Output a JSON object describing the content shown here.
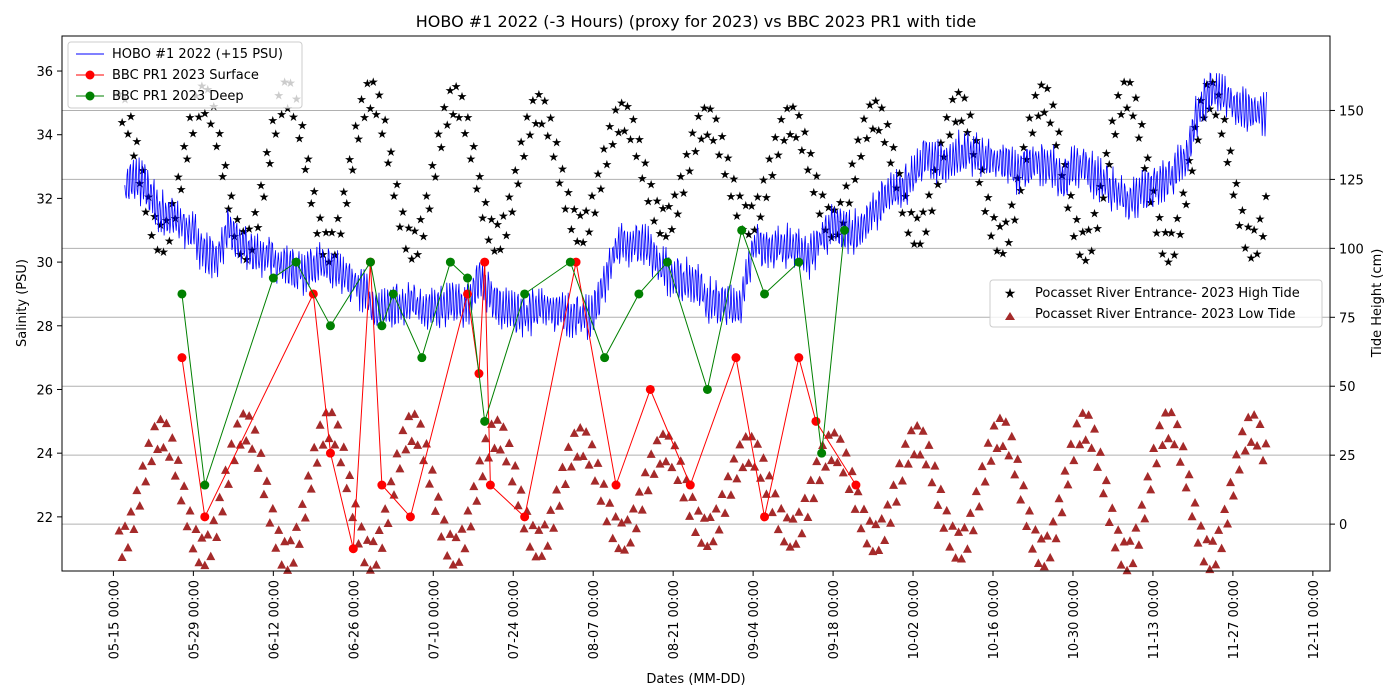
{
  "chart_data": {
    "type": "line",
    "title": "HOBO #1 2022 (-3 Hours) (proxy for 2023) vs BBC 2023 PR1 with tide",
    "xlabel": "Dates (MM-DD)",
    "ylabel": "Salinity (PSU)",
    "y2label": "Tide Height (cm)",
    "x_axis": {
      "kind": "date",
      "range": [
        "2023-05-06",
        "2023-12-14"
      ],
      "tick_dates": [
        "2023-05-15",
        "2023-05-29",
        "2023-06-12",
        "2023-06-26",
        "2023-07-10",
        "2023-07-24",
        "2023-08-07",
        "2023-08-21",
        "2023-09-04",
        "2023-09-18",
        "2023-10-02",
        "2023-10-16",
        "2023-10-30",
        "2023-11-13",
        "2023-11-27",
        "2023-12-11"
      ],
      "tick_labels": [
        "05-15 00:00",
        "05-29 00:00",
        "06-12 00:00",
        "06-26 00:00",
        "07-10 00:00",
        "07-24 00:00",
        "08-07 00:00",
        "08-21 00:00",
        "09-04 00:00",
        "09-18 00:00",
        "10-02 00:00",
        "10-16 00:00",
        "10-30 00:00",
        "11-13 00:00",
        "11-27 00:00",
        "12-11 00:00"
      ]
    },
    "y_axis": {
      "range": [
        20.3,
        37.1
      ],
      "ticks": [
        "22",
        "24",
        "26",
        "28",
        "30",
        "32",
        "34",
        "36"
      ]
    },
    "y2_axis": {
      "range": [
        -17,
        177
      ],
      "ticks": [
        "0",
        "25",
        "50",
        "75",
        "100",
        "125",
        "150"
      ],
      "grid": true
    },
    "legend_left": {
      "placement": "upper-left",
      "entries": [
        {
          "label": "HOBO #1 2022 (+15 PSU)",
          "color": "#0000ff",
          "marker": "line"
        },
        {
          "label": "BBC PR1 2023 Surface",
          "color": "#ff0000",
          "marker": "circle"
        },
        {
          "label": "BBC PR1 2023 Deep",
          "color": "#008000",
          "marker": "circle"
        }
      ]
    },
    "legend_right": {
      "placement": "center-right",
      "entries": [
        {
          "label": "Pocasset River Entrance- 2023 High Tide",
          "color": "#800080",
          "marker": "star"
        },
        {
          "label": "Pocasset River Entrance- 2023 Low Tide",
          "color": "#a52a2a",
          "marker": "triangle"
        }
      ]
    },
    "series": [
      {
        "name": "HOBO #1 2022 (+15 PSU)",
        "axis": "left",
        "color": "#0000ff",
        "style": "line-noisy",
        "points": [
          [
            "2023-05-17",
            32.4
          ],
          [
            "2023-05-19",
            32.6
          ],
          [
            "2023-05-21",
            32.3
          ],
          [
            "2023-05-23",
            31.6
          ],
          [
            "2023-05-25",
            31.4
          ],
          [
            "2023-05-27",
            31.2
          ],
          [
            "2023-05-29",
            30.9
          ],
          [
            "2023-05-31",
            30.3
          ],
          [
            "2023-06-02",
            30.1
          ],
          [
            "2023-06-04",
            31.0
          ],
          [
            "2023-06-06",
            30.6
          ],
          [
            "2023-06-08",
            30.3
          ],
          [
            "2023-06-10",
            30.2
          ],
          [
            "2023-06-12",
            30.1
          ],
          [
            "2023-06-14",
            29.9
          ],
          [
            "2023-06-16",
            29.8
          ],
          [
            "2023-06-18",
            29.7
          ],
          [
            "2023-06-20",
            29.9
          ],
          [
            "2023-06-22",
            29.8
          ],
          [
            "2023-06-24",
            29.6
          ],
          [
            "2023-06-26",
            29.4
          ],
          [
            "2023-06-28",
            29.1
          ],
          [
            "2023-06-30",
            28.4
          ],
          [
            "2023-07-02",
            28.5
          ],
          [
            "2023-07-04",
            28.7
          ],
          [
            "2023-07-06",
            28.7
          ],
          [
            "2023-07-08",
            28.6
          ],
          [
            "2023-07-10",
            28.6
          ],
          [
            "2023-07-12",
            28.6
          ],
          [
            "2023-07-14",
            28.7
          ],
          [
            "2023-07-16",
            28.6
          ],
          [
            "2023-07-18",
            29.5
          ],
          [
            "2023-07-20",
            29.0
          ],
          [
            "2023-07-22",
            28.6
          ],
          [
            "2023-07-24",
            28.4
          ],
          [
            "2023-07-26",
            28.3
          ],
          [
            "2023-07-28",
            28.5
          ],
          [
            "2023-07-30",
            28.6
          ],
          [
            "2023-08-01",
            28.4
          ],
          [
            "2023-08-03",
            28.3
          ],
          [
            "2023-08-05",
            28.3
          ],
          [
            "2023-08-07",
            28.3
          ],
          [
            "2023-08-09",
            29.4
          ],
          [
            "2023-08-11",
            30.5
          ],
          [
            "2023-08-13",
            30.6
          ],
          [
            "2023-08-15",
            30.6
          ],
          [
            "2023-08-17",
            30.3
          ],
          [
            "2023-08-19",
            29.8
          ],
          [
            "2023-08-21",
            29.6
          ],
          [
            "2023-08-23",
            29.4
          ],
          [
            "2023-08-25",
            29.4
          ],
          [
            "2023-08-27",
            28.8
          ],
          [
            "2023-08-29",
            28.7
          ],
          [
            "2023-08-31",
            28.6
          ],
          [
            "2023-09-02",
            28.7
          ],
          [
            "2023-09-04",
            30.6
          ],
          [
            "2023-09-06",
            30.4
          ],
          [
            "2023-09-08",
            30.5
          ],
          [
            "2023-09-10",
            30.5
          ],
          [
            "2023-09-12",
            30.4
          ],
          [
            "2023-09-14",
            30.2
          ],
          [
            "2023-09-16",
            30.8
          ],
          [
            "2023-09-18",
            31.1
          ],
          [
            "2023-09-20",
            31.0
          ],
          [
            "2023-09-22",
            30.9
          ],
          [
            "2023-09-24",
            31.3
          ],
          [
            "2023-09-26",
            31.8
          ],
          [
            "2023-09-28",
            32.1
          ],
          [
            "2023-09-30",
            32.4
          ],
          [
            "2023-10-02",
            32.6
          ],
          [
            "2023-10-04",
            33.3
          ],
          [
            "2023-10-06",
            33.2
          ],
          [
            "2023-10-08",
            33.1
          ],
          [
            "2023-10-10",
            33.4
          ],
          [
            "2023-10-12",
            33.4
          ],
          [
            "2023-10-14",
            33.2
          ],
          [
            "2023-10-16",
            33.2
          ],
          [
            "2023-10-18",
            33.2
          ],
          [
            "2023-10-20",
            32.8
          ],
          [
            "2023-10-22",
            33.0
          ],
          [
            "2023-10-24",
            33.1
          ],
          [
            "2023-10-26",
            33.1
          ],
          [
            "2023-10-28",
            32.5
          ],
          [
            "2023-10-30",
            33.0
          ],
          [
            "2023-11-01",
            33.1
          ],
          [
            "2023-11-03",
            32.6
          ],
          [
            "2023-11-05",
            32.4
          ],
          [
            "2023-11-07",
            32.1
          ],
          [
            "2023-11-09",
            31.9
          ],
          [
            "2023-11-11",
            32.3
          ],
          [
            "2023-11-13",
            32.4
          ],
          [
            "2023-11-15",
            32.6
          ],
          [
            "2023-11-17",
            32.8
          ],
          [
            "2023-11-19",
            33.4
          ],
          [
            "2023-11-21",
            34.8
          ],
          [
            "2023-11-23",
            35.4
          ],
          [
            "2023-11-25",
            35.2
          ],
          [
            "2023-11-27",
            35.0
          ],
          [
            "2023-11-29",
            34.8
          ],
          [
            "2023-12-01",
            34.7
          ],
          [
            "2023-12-03",
            34.6
          ]
        ]
      },
      {
        "name": "BBC PR1 2023 Surface",
        "axis": "left",
        "color": "#ff0000",
        "style": "line-marker",
        "points": [
          [
            "2023-05-27",
            27.0
          ],
          [
            "2023-05-29",
            null
          ],
          [
            "2023-05-31",
            22.0
          ],
          [
            "2023-06-19",
            29.0
          ],
          [
            "2023-06-22",
            24.0
          ],
          [
            "2023-06-26",
            21.0
          ],
          [
            "2023-06-29",
            30.0
          ],
          [
            "2023-07-01",
            23.0
          ],
          [
            "2023-07-03",
            null
          ],
          [
            "2023-07-06",
            22.0
          ],
          [
            "2023-07-16",
            29.0
          ],
          [
            "2023-07-18",
            26.5
          ],
          [
            "2023-07-19",
            30.0
          ],
          [
            "2023-07-20",
            23.0
          ],
          [
            "2023-07-22",
            null
          ],
          [
            "2023-07-26",
            22.0
          ],
          [
            "2023-07-29",
            null
          ],
          [
            "2023-08-04",
            30.0
          ],
          [
            "2023-08-06",
            null
          ],
          [
            "2023-08-11",
            23.0
          ],
          [
            "2023-08-13",
            null
          ],
          [
            "2023-08-17",
            26.0
          ],
          [
            "2023-08-20",
            null
          ],
          [
            "2023-08-24",
            23.0
          ],
          [
            "2023-08-26",
            null
          ],
          [
            "2023-09-01",
            27.0
          ],
          [
            "2023-09-04",
            null
          ],
          [
            "2023-09-06",
            22.0
          ],
          [
            "2023-09-09",
            null
          ],
          [
            "2023-09-12",
            27.0
          ],
          [
            "2023-09-15",
            25.0
          ],
          [
            "2023-09-18",
            null
          ],
          [
            "2023-09-22",
            23.0
          ]
        ]
      },
      {
        "name": "BBC PR1 2023 Deep",
        "axis": "left",
        "color": "#008000",
        "style": "line-marker",
        "points": [
          [
            "2023-05-27",
            29.0
          ],
          [
            "2023-05-31",
            23.0
          ],
          [
            "2023-06-12",
            29.5
          ],
          [
            "2023-06-16",
            30.0
          ],
          [
            "2023-06-22",
            28.0
          ],
          [
            "2023-06-29",
            30.0
          ],
          [
            "2023-07-01",
            28.0
          ],
          [
            "2023-07-03",
            29.0
          ],
          [
            "2023-07-08",
            27.0
          ],
          [
            "2023-07-13",
            30.0
          ],
          [
            "2023-07-16",
            29.5
          ],
          [
            "2023-07-19",
            25.0
          ],
          [
            "2023-07-26",
            29.0
          ],
          [
            "2023-08-03",
            30.0
          ],
          [
            "2023-08-09",
            27.0
          ],
          [
            "2023-08-15",
            29.0
          ],
          [
            "2023-08-20",
            30.0
          ],
          [
            "2023-08-27",
            26.0
          ],
          [
            "2023-09-02",
            31.0
          ],
          [
            "2023-09-06",
            29.0
          ],
          [
            "2023-09-12",
            30.0
          ],
          [
            "2023-09-16",
            24.0
          ],
          [
            "2023-09-20",
            31.0
          ]
        ]
      },
      {
        "name": "Pocasset River Entrance- 2023 High Tide",
        "axis": "right",
        "color": "#800080",
        "style": "marker-star",
        "tidal_model": {
          "mean": 128,
          "amp_range": [
            18,
            28
          ],
          "period_days": 14.7,
          "phase_date": "2023-05-16",
          "half_period_days": 12.42
        }
      },
      {
        "name": "Pocasset River Entrance- 2023 Low Tide",
        "axis": "right",
        "color": "#a52a2a",
        "style": "marker-triangle",
        "tidal_model": {
          "mean": 12,
          "amp_range": [
            15,
            24
          ],
          "period_days": 14.7,
          "phase_date": "2023-05-16",
          "half_period_days": 12.42
        }
      }
    ]
  }
}
